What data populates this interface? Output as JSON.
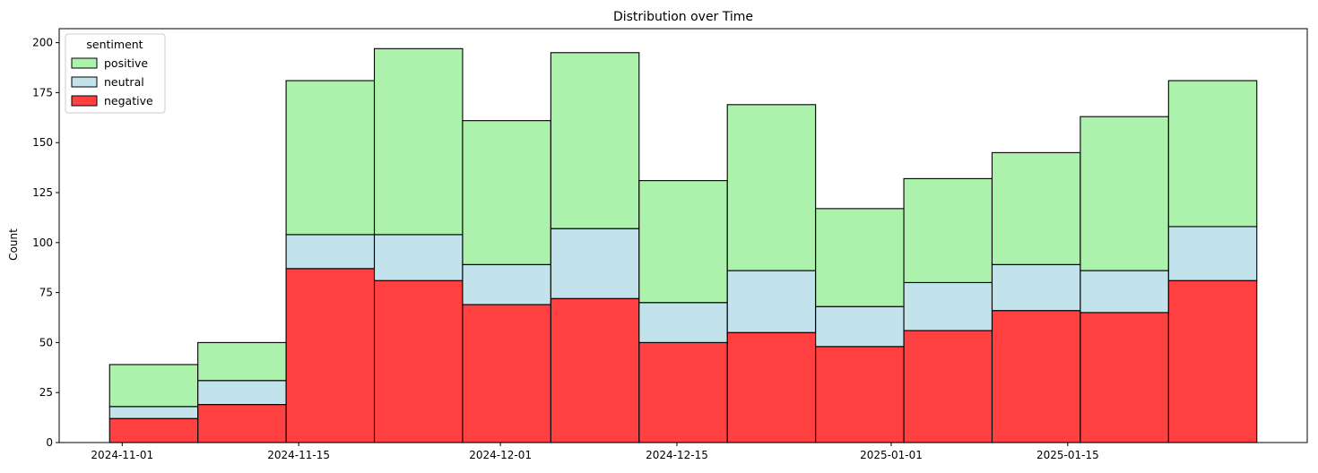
{
  "chart_data": {
    "type": "bar",
    "stacked": true,
    "title": "Distribution over Time",
    "xlabel": "",
    "ylabel": "Count",
    "bins": [
      {
        "start": "2024-10-31",
        "end": "2024-11-07"
      },
      {
        "start": "2024-11-07",
        "end": "2024-11-14"
      },
      {
        "start": "2024-11-14",
        "end": "2024-11-21"
      },
      {
        "start": "2024-11-21",
        "end": "2024-11-28"
      },
      {
        "start": "2024-11-28",
        "end": "2024-12-05"
      },
      {
        "start": "2024-12-05",
        "end": "2024-12-12"
      },
      {
        "start": "2024-12-12",
        "end": "2024-12-19"
      },
      {
        "start": "2024-12-19",
        "end": "2024-12-26"
      },
      {
        "start": "2024-12-26",
        "end": "2025-01-02"
      },
      {
        "start": "2025-01-02",
        "end": "2025-01-09"
      },
      {
        "start": "2025-01-09",
        "end": "2025-01-16"
      },
      {
        "start": "2025-01-16",
        "end": "2025-01-23"
      },
      {
        "start": "2025-01-23",
        "end": "2025-01-30"
      }
    ],
    "series": [
      {
        "name": "negative",
        "color": "#ff0000",
        "alpha": 0.75,
        "values": [
          12,
          19,
          87,
          81,
          69,
          72,
          50,
          55,
          48,
          56,
          66,
          65,
          81
        ]
      },
      {
        "name": "neutral",
        "color": "#add8e6",
        "alpha": 0.75,
        "values": [
          6,
          12,
          17,
          23,
          20,
          35,
          20,
          31,
          20,
          24,
          23,
          21,
          27
        ]
      },
      {
        "name": "positive",
        "color": "#90ee90",
        "alpha": 0.75,
        "values": [
          21,
          19,
          77,
          93,
          72,
          88,
          61,
          83,
          49,
          52,
          56,
          77,
          73
        ]
      }
    ],
    "x_ticks": [
      "2024-11-01",
      "2024-11-15",
      "2024-12-01",
      "2024-12-15",
      "2025-01-01",
      "2025-01-15"
    ],
    "y_ticks": [
      "0",
      "25",
      "50",
      "75",
      "100",
      "125",
      "150",
      "175",
      "200"
    ],
    "ylim": [
      0,
      207
    ],
    "xlim": [
      "2024-10-27",
      "2025-02-03"
    ],
    "legend": {
      "title": "sentiment",
      "placement": "top-left",
      "entries": [
        "positive",
        "neutral",
        "negative"
      ]
    }
  }
}
